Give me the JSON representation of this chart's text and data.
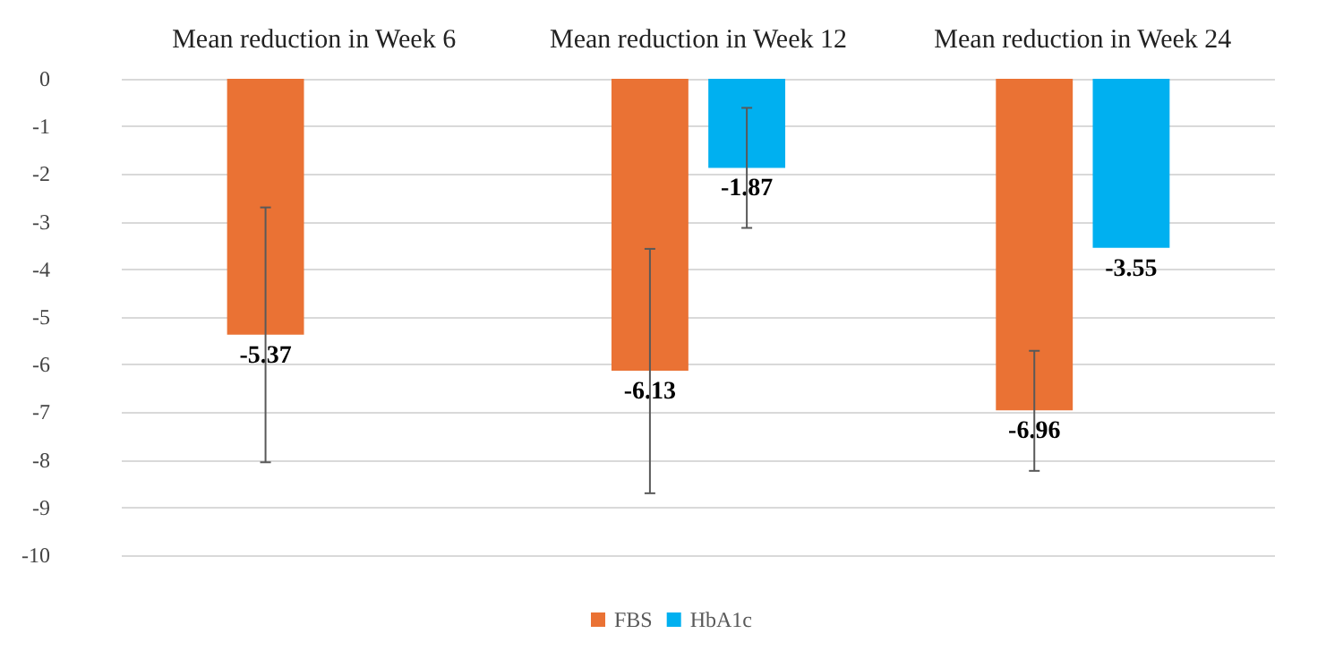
{
  "chart_data": {
    "type": "bar",
    "categories": [
      "Mean reduction in Week 6",
      "Mean reduction in Week 12",
      "Mean reduction in Week 24"
    ],
    "series": [
      {
        "name": "FBS",
        "color": "#ea7234",
        "values": [
          -5.37,
          -6.13,
          -6.96
        ],
        "errors": [
          [
            -8.05,
            -2.7
          ],
          [
            -8.7,
            -3.57
          ],
          [
            -8.23,
            -5.71
          ]
        ]
      },
      {
        "name": "HbA1c",
        "color": "#00b0f0",
        "values": [
          null,
          -1.87,
          -3.55
        ],
        "errors": [
          null,
          [
            -3.13,
            -0.61
          ],
          null
        ]
      }
    ],
    "ylim": [
      -10,
      0
    ],
    "yticks": [
      0,
      -1,
      -2,
      -3,
      -4,
      -5,
      -6,
      -7,
      -8,
      -9,
      -10
    ],
    "grid": "y",
    "legend": "bottom",
    "data_labels": true
  }
}
